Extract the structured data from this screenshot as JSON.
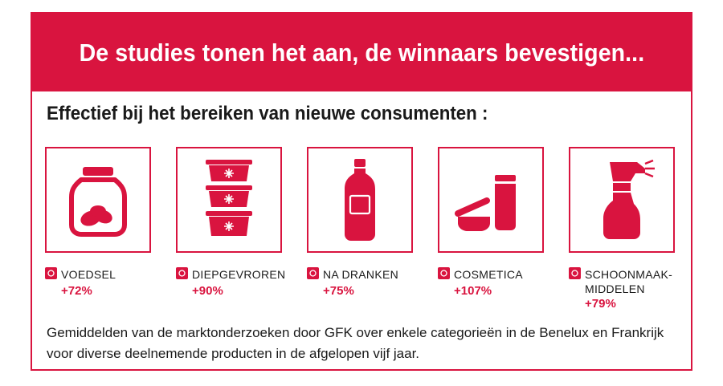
{
  "banner": {
    "title": "De studies tonen het aan, de winnaars bevestigen..."
  },
  "subtitle": "Effectief bij het bereiken van nieuwe consumenten :",
  "categories": [
    {
      "name": "VOEDSEL",
      "value": "+72%",
      "icon": "jar-icon"
    },
    {
      "name": "DIEPGEVROREN",
      "value": "+90%",
      "icon": "frozen-containers-icon"
    },
    {
      "name": "NA DRANKEN",
      "value": "+75%",
      "icon": "bottle-icon"
    },
    {
      "name": "COSMETICA",
      "value": "+107%",
      "icon": "cosmetics-icon"
    },
    {
      "name_line1": "SCHOONMAAK-",
      "name_line2": "MIDDELEN",
      "value": "+79%",
      "icon": "spray-bottle-icon"
    }
  ],
  "footnote": "Gemiddelden van de marktonderzoeken door GFK over enkele categorieën in de Benelux en Frankrijk voor diverse deelnemende producten in de afgelopen vijf jaar.",
  "colors": {
    "accent": "#d9143f",
    "text": "#1a1a1a",
    "background": "#ffffff"
  }
}
